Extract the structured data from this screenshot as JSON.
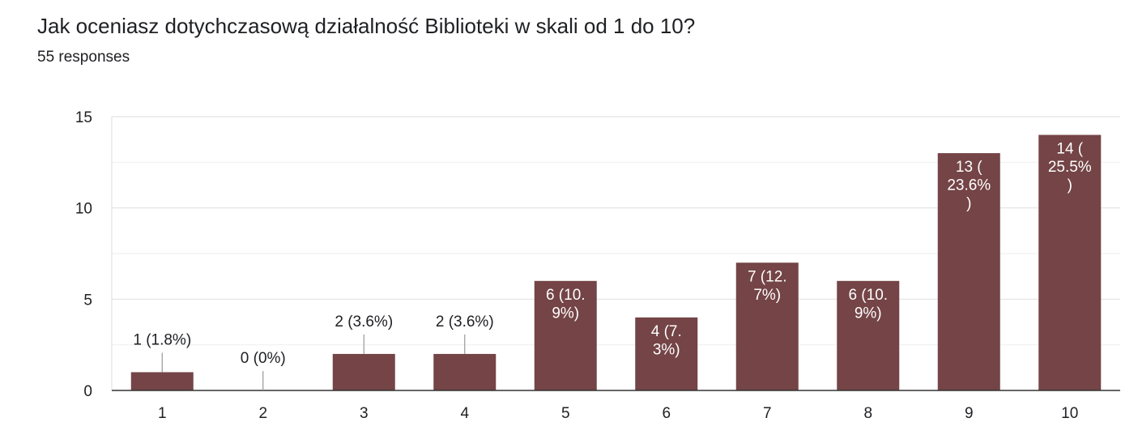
{
  "header": {
    "title": "Jak oceniasz dotychczasową działalność Biblioteki w skali od 1 do 10?",
    "responses": "55 responses"
  },
  "colors": {
    "bar": "#744446",
    "grid": "#e8e8e8",
    "axis": "#333333",
    "text": "#202124",
    "label_inside": "#ffffff"
  },
  "chart_data": {
    "type": "bar",
    "title": "",
    "xlabel": "",
    "ylabel": "",
    "categories": [
      "1",
      "2",
      "3",
      "4",
      "5",
      "6",
      "7",
      "8",
      "9",
      "10"
    ],
    "values": [
      1,
      0,
      2,
      2,
      6,
      4,
      7,
      6,
      13,
      14
    ],
    "data_labels": [
      [
        "1 (1.8%)"
      ],
      [
        "0 (0%)"
      ],
      [
        "2 (3.6%)"
      ],
      [
        "2 (3.6%)"
      ],
      [
        "6 (10.",
        "9%)"
      ],
      [
        "4 (7.",
        "3%)"
      ],
      [
        "7 (12.",
        "7%)"
      ],
      [
        "6 (10.",
        "9%)"
      ],
      [
        "13 (",
        "23.6%",
        ")"
      ],
      [
        "14 (",
        "25.5%",
        ")"
      ]
    ],
    "label_position": [
      "outside",
      "outside",
      "outside",
      "outside",
      "inside",
      "inside",
      "inside",
      "inside",
      "inside",
      "inside"
    ],
    "ylim": [
      0,
      15
    ],
    "yticks": [
      0,
      5,
      10,
      15
    ],
    "grid": true,
    "legend": "none"
  }
}
